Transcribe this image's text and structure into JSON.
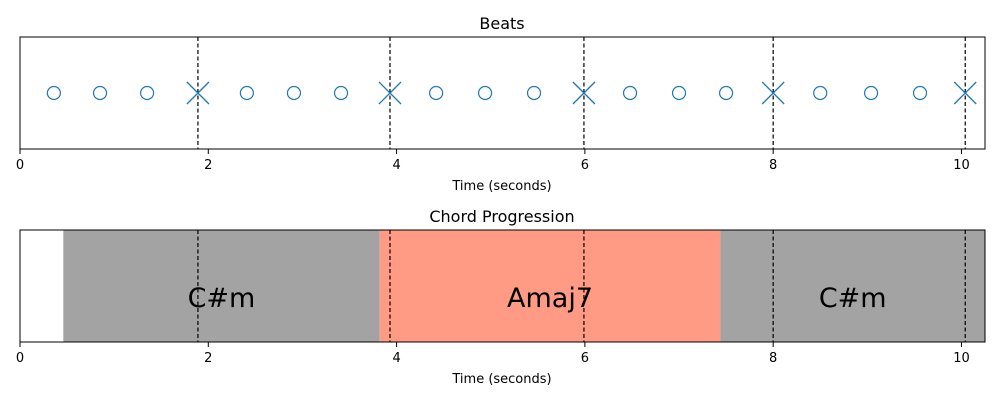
{
  "chart_data": [
    {
      "type": "scatter",
      "title": "Beats",
      "xlabel": "Time (seconds)",
      "ylabel": "",
      "xlim": [
        0,
        10.25
      ],
      "xticks": [
        0,
        2,
        4,
        6,
        8,
        10
      ],
      "tick_labels": [
        "0",
        "2",
        "4",
        "6",
        "8",
        "10"
      ],
      "grid": false,
      "colors": {
        "marker": "#1f77b4",
        "downbeat_line": "#000000"
      },
      "beats": [
        0.36,
        0.85,
        1.35,
        2.41,
        2.91,
        3.41,
        4.42,
        4.94,
        5.46,
        6.48,
        7.0,
        7.5,
        8.5,
        9.04,
        9.56
      ],
      "downbeats": [
        1.89,
        3.93,
        5.99,
        8.0,
        10.04
      ]
    },
    {
      "type": "bar",
      "title": "Chord Progression",
      "xlabel": "Time (seconds)",
      "ylabel": "",
      "xlim": [
        0,
        10.25
      ],
      "xticks": [
        0,
        2,
        4,
        6,
        8,
        10
      ],
      "tick_labels": [
        "0",
        "2",
        "4",
        "6",
        "8",
        "10"
      ],
      "grid": false,
      "colors": {
        "C#m": "#a3a3a3",
        "Amaj7": "#ff9a85",
        "downbeat_line": "#000000"
      },
      "segments": [
        {
          "chord": "C#m",
          "start": 0.46,
          "end": 3.82
        },
        {
          "chord": "Amaj7",
          "start": 3.82,
          "end": 7.44
        },
        {
          "chord": "C#m",
          "start": 7.44,
          "end": 10.25
        }
      ],
      "downbeats": [
        1.89,
        3.93,
        5.99,
        8.0,
        10.04
      ]
    }
  ]
}
